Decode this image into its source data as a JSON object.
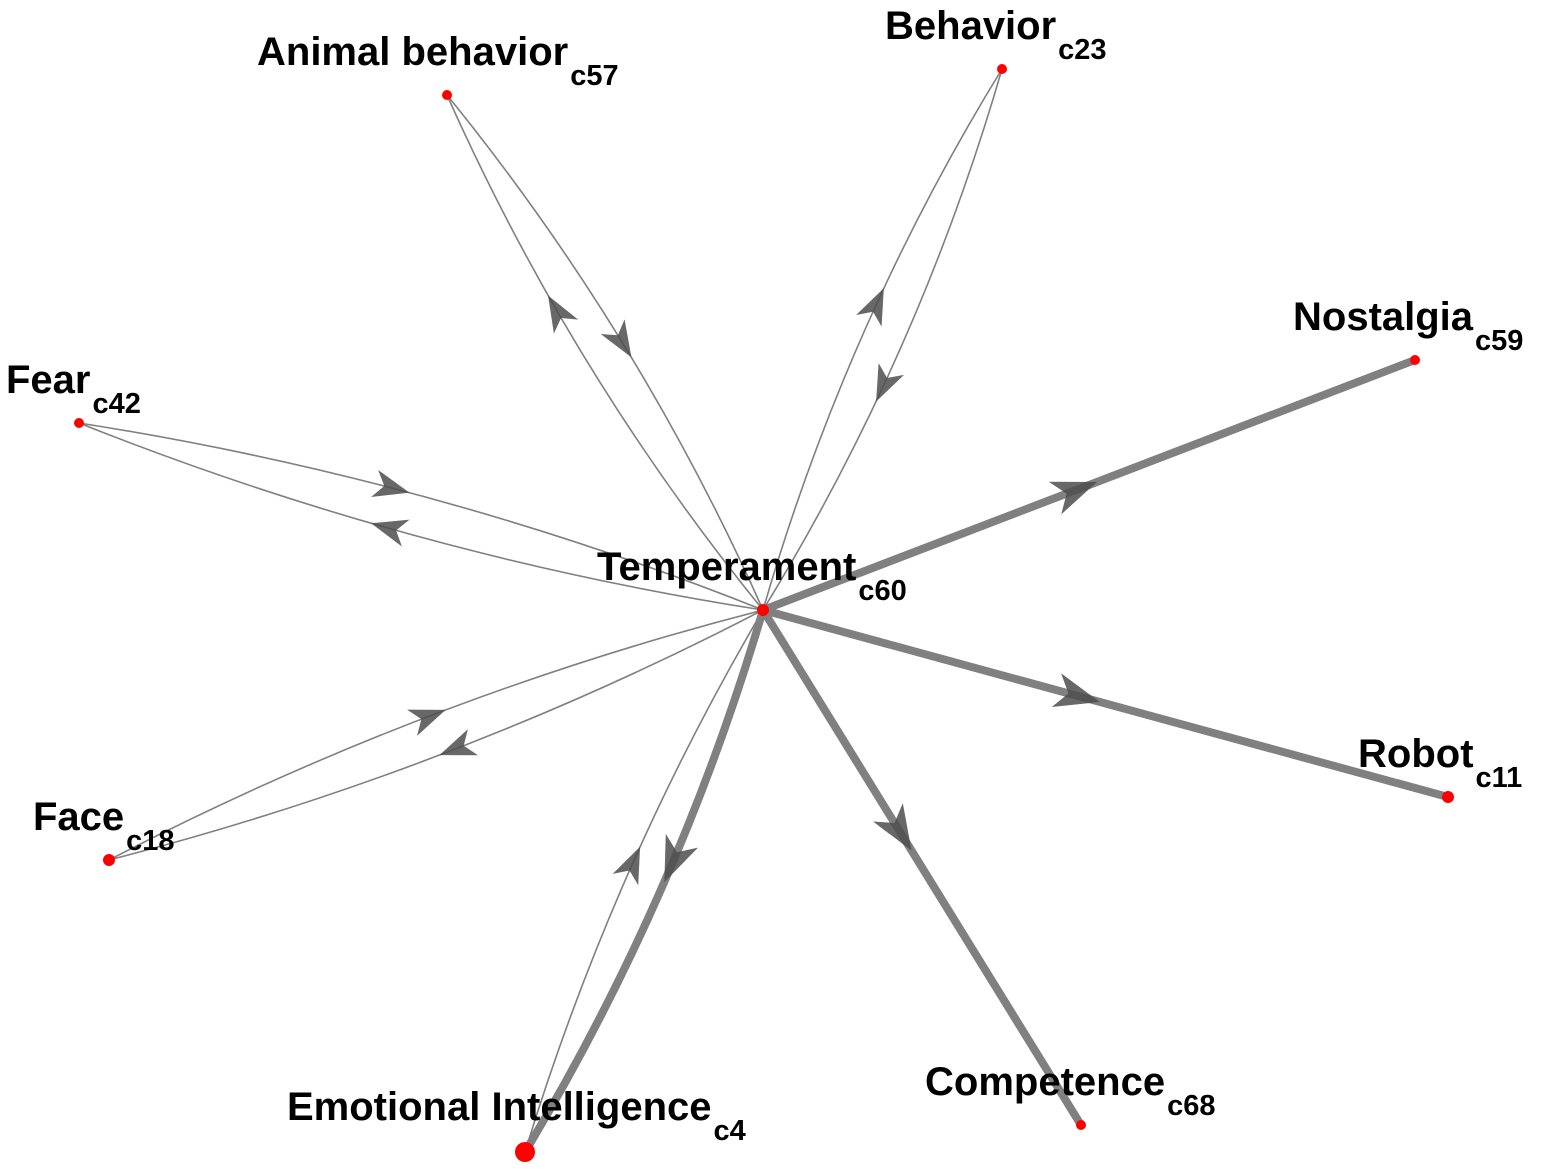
{
  "diagram": {
    "type": "directed-network",
    "edge_color": "#808080",
    "arrow_color": "#4d4d4d",
    "node_color": "#ff0000",
    "nodes": [
      {
        "id": "c60",
        "name": "Temperament",
        "code": "c60"
      },
      {
        "id": "c57",
        "name": "Animal behavior",
        "code": "c57"
      },
      {
        "id": "c23",
        "name": "Behavior",
        "code": "c23"
      },
      {
        "id": "c59",
        "name": "Nostalgia",
        "code": "c59"
      },
      {
        "id": "c42",
        "name": "Fear",
        "code": "c42"
      },
      {
        "id": "c11",
        "name": "Robot",
        "code": "c11"
      },
      {
        "id": "c18",
        "name": "Face",
        "code": "c18"
      },
      {
        "id": "c68",
        "name": "Competence",
        "code": "c68"
      },
      {
        "id": "c4",
        "name": "Emotional Intelligence",
        "code": "c4"
      }
    ],
    "edges": [
      {
        "from": "c60",
        "to": "c57",
        "weight": 1
      },
      {
        "from": "c57",
        "to": "c60",
        "weight": 1
      },
      {
        "from": "c60",
        "to": "c23",
        "weight": 1
      },
      {
        "from": "c23",
        "to": "c60",
        "weight": 1
      },
      {
        "from": "c60",
        "to": "c42",
        "weight": 1
      },
      {
        "from": "c42",
        "to": "c60",
        "weight": 1
      },
      {
        "from": "c60",
        "to": "c18",
        "weight": 1
      },
      {
        "from": "c18",
        "to": "c60",
        "weight": 1
      },
      {
        "from": "c4",
        "to": "c60",
        "weight": 1
      },
      {
        "from": "c60",
        "to": "c4",
        "weight": 5
      },
      {
        "from": "c60",
        "to": "c59",
        "weight": 5
      },
      {
        "from": "c60",
        "to": "c11",
        "weight": 5
      },
      {
        "from": "c60",
        "to": "c68",
        "weight": 5
      }
    ]
  }
}
